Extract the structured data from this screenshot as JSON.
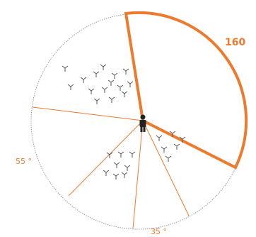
{
  "diagram": {
    "highlight_angle_label": "160",
    "left_angle_label": "55 °",
    "bottom_angle_label": "35 °",
    "colors": {
      "accent": "#ee7a2d",
      "circle_outline": "#999999",
      "tree_marks": "#555555",
      "person": "#222222"
    },
    "icons": {
      "observer": "person-icon",
      "marks": "three-branch-tree-icon"
    }
  }
}
